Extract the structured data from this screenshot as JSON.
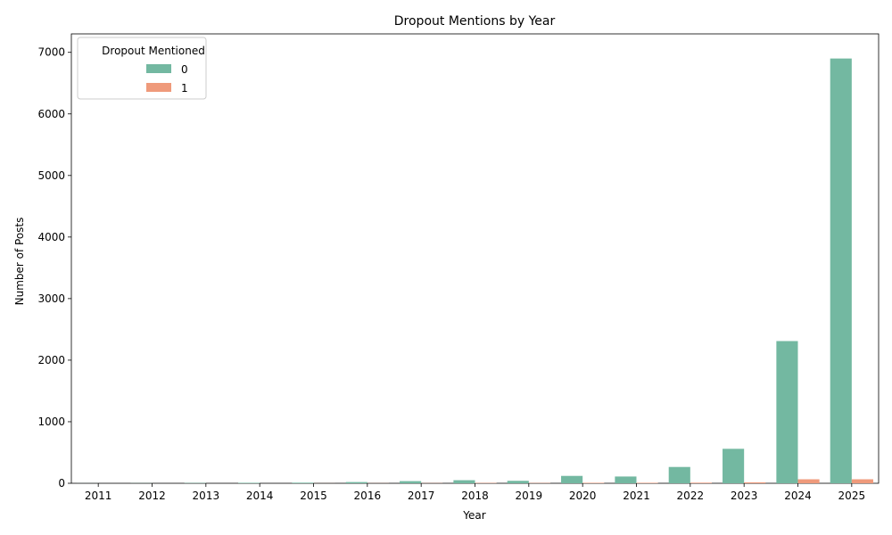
{
  "chart_data": {
    "type": "bar",
    "title": "Dropout Mentions by Year",
    "xlabel": "Year",
    "ylabel": "Number of Posts",
    "ylim": [
      0,
      7300
    ],
    "yticks": [
      0,
      1000,
      2000,
      3000,
      4000,
      5000,
      6000,
      7000
    ],
    "categories": [
      "2011",
      "2012",
      "2013",
      "2014",
      "2015",
      "2016",
      "2017",
      "2018",
      "2019",
      "2020",
      "2021",
      "2022",
      "2023",
      "2024",
      "2025"
    ],
    "legend": {
      "title": "Dropout Mentioned",
      "placement": "top-left"
    },
    "series": [
      {
        "name": "0",
        "color": "#73b8a1",
        "values": [
          1,
          2,
          5,
          8,
          10,
          20,
          35,
          50,
          40,
          120,
          110,
          265,
          560,
          2310,
          6900
        ]
      },
      {
        "name": "1",
        "color": "#ef9a7b",
        "values": [
          0,
          0,
          0,
          0,
          1,
          2,
          3,
          6,
          5,
          8,
          8,
          10,
          15,
          65,
          65
        ]
      }
    ],
    "grid": false
  }
}
